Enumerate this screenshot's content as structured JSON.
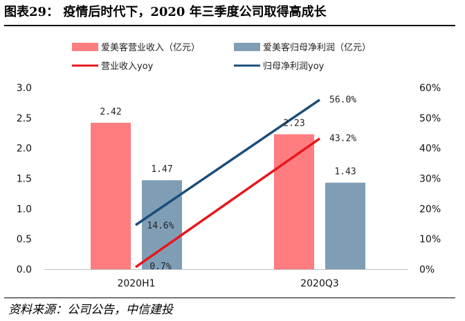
{
  "title": "图表29：  疫情后时代下，2020 年三季度公司取得高成长",
  "source": "资料来源：公司公告，中信建投",
  "colors": {
    "revenue_bar": "#ff7c80",
    "profit_bar": "#7f9eb6",
    "revenue_line": "#e8161b",
    "profit_line": "#1a4d79"
  },
  "chart_data": {
    "type": "bar+line",
    "categories": [
      "2020H1",
      "2020Q3"
    ],
    "left_axis": {
      "min": 0,
      "max": 3,
      "ticks": [
        "0.0",
        "0.5",
        "1.0",
        "1.5",
        "2.0",
        "2.5",
        "3.0"
      ],
      "tick_values": [
        0,
        0.5,
        1,
        1.5,
        2,
        2.5,
        3
      ]
    },
    "right_axis": {
      "min": 0,
      "max": 60,
      "ticks": [
        "0%",
        "10%",
        "20%",
        "30%",
        "40%",
        "50%",
        "60%"
      ],
      "tick_values": [
        0,
        10,
        20,
        30,
        40,
        50,
        60
      ]
    },
    "bar_series": [
      {
        "name": "爱美客营业收入（亿元）",
        "values": [
          2.42,
          2.23
        ],
        "labels": [
          "2.42",
          "2.23"
        ]
      },
      {
        "name": "爱美客归母净利润（亿元）",
        "values": [
          1.47,
          1.43
        ],
        "labels": [
          "1.47",
          "1.43"
        ]
      }
    ],
    "line_series": [
      {
        "name": "营业收入yoy",
        "values": [
          0.7,
          43.2
        ],
        "labels": [
          "0.7%",
          "43.2%"
        ]
      },
      {
        "name": "归母净利润yoy",
        "values": [
          14.6,
          56.0
        ],
        "labels": [
          "14.6%",
          "56.0%"
        ]
      }
    ],
    "legend_position": "top"
  }
}
